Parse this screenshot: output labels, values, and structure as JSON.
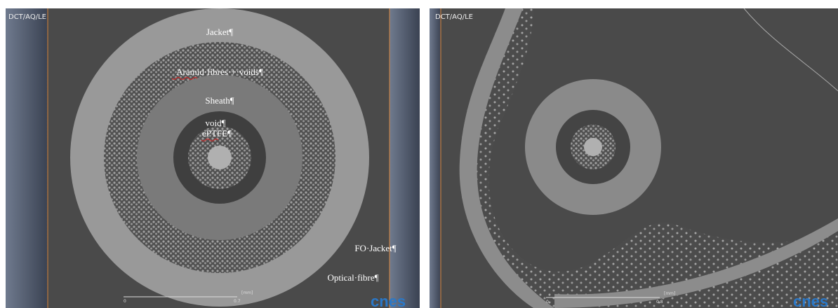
{
  "left_panel": {
    "header": "DCT/AQ/LE",
    "labels": {
      "jacket": "Jacket¶",
      "aramid": "Aramid·fibres·+·voids¶",
      "sheath": "Sheath¶",
      "void": "void¶",
      "eptfe": "ePTFE¶",
      "fo_jacket": "FO·Jacket¶",
      "optical_fibre": "Optical·fibre¶"
    },
    "scale": {
      "start": "0",
      "end": "0.7",
      "unit": "[mm]"
    },
    "logo": "cnes"
  },
  "right_panel": {
    "header": "DCT/AQ/LE",
    "scale": {
      "start": "0",
      "end": "0.8",
      "unit": "[mm]"
    },
    "logo": "cnes"
  }
}
